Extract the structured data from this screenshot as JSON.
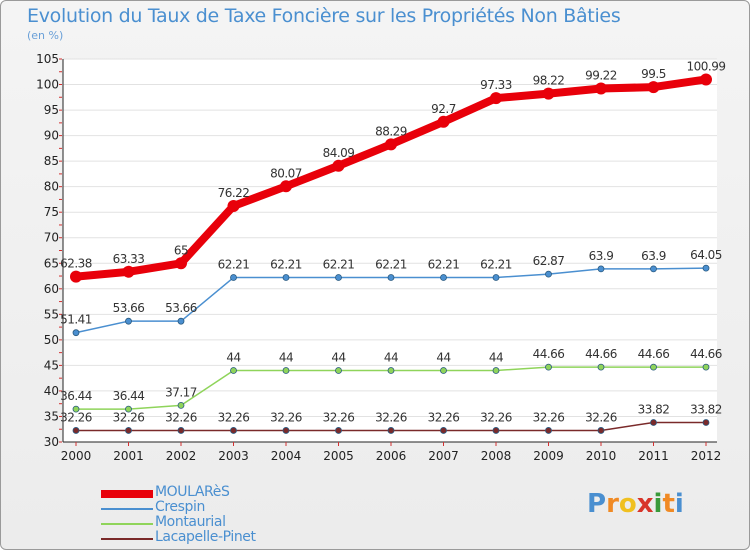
{
  "title": "Evolution du Taux de Taxe Foncière sur les Propriétés Non Bâties",
  "subtitle": "(en %)",
  "logo": {
    "letters": [
      "P",
      "r",
      "o",
      "x",
      "i",
      "t",
      "i"
    ],
    "colors": [
      "#4a8fd0",
      "#f08a24",
      "#f0c020",
      "#d8352a",
      "#3a9a3a",
      "#f08a24",
      "#4a8fd0"
    ]
  },
  "chart_data": {
    "type": "line",
    "title": "Evolution du Taux de Taxe Foncière sur les Propriétés Non Bâties",
    "ylabel": "(en %)",
    "xlabel": "",
    "ylim": [
      30,
      105
    ],
    "yticks": [
      30,
      35,
      40,
      45,
      50,
      55,
      60,
      65,
      70,
      75,
      80,
      85,
      90,
      95,
      100,
      105
    ],
    "categories": [
      "2000",
      "2001",
      "2002",
      "2003",
      "2004",
      "2005",
      "2006",
      "2007",
      "2008",
      "2009",
      "2010",
      "2011",
      "2012"
    ],
    "series": [
      {
        "name": "MOULARèS",
        "color": "#e8000a",
        "values": [
          62.38,
          63.33,
          65,
          76.22,
          80.07,
          84.09,
          88.29,
          92.7,
          97.33,
          98.22,
          99.22,
          99.5,
          100.99
        ],
        "labels": [
          "62.38",
          "63.33",
          "65",
          "76.22",
          "80.07",
          "84.09",
          "88.29",
          "92.7",
          "97.33",
          "98.22",
          "99.22",
          "99.5",
          "100.99"
        ]
      },
      {
        "name": "Crespin",
        "color": "#4a8fd0",
        "values": [
          51.41,
          53.66,
          53.66,
          62.21,
          62.21,
          62.21,
          62.21,
          62.21,
          62.21,
          62.87,
          63.9,
          63.9,
          64.05
        ],
        "labels": [
          "51.41",
          "53.66",
          "53.66",
          "62.21",
          "62.21",
          "62.21",
          "62.21",
          "62.21",
          "62.21",
          "62.87",
          "63.9",
          "63.9",
          "64.05"
        ]
      },
      {
        "name": "Montaurial",
        "color": "#8fd45a",
        "values": [
          36.44,
          36.44,
          37.17,
          44,
          44,
          44,
          44,
          44,
          44,
          44.66,
          44.66,
          44.66,
          44.66
        ],
        "labels": [
          "36.44",
          "36.44",
          "37.17",
          "44",
          "44",
          "44",
          "44",
          "44",
          "44",
          "44.66",
          "44.66",
          "44.66",
          "44.66"
        ]
      },
      {
        "name": "Lacapelle-Pinet",
        "color": "#7a2a2a",
        "values": [
          32.26,
          32.26,
          32.26,
          32.26,
          32.26,
          32.26,
          32.26,
          32.26,
          32.26,
          32.26,
          32.26,
          33.82,
          33.82
        ],
        "labels": [
          "32.26",
          "32.26",
          "32.26",
          "32.26",
          "32.26",
          "32.26",
          "32.26",
          "32.26",
          "32.26",
          "32.26",
          "32.26",
          "33.82",
          "33.82"
        ]
      }
    ]
  }
}
